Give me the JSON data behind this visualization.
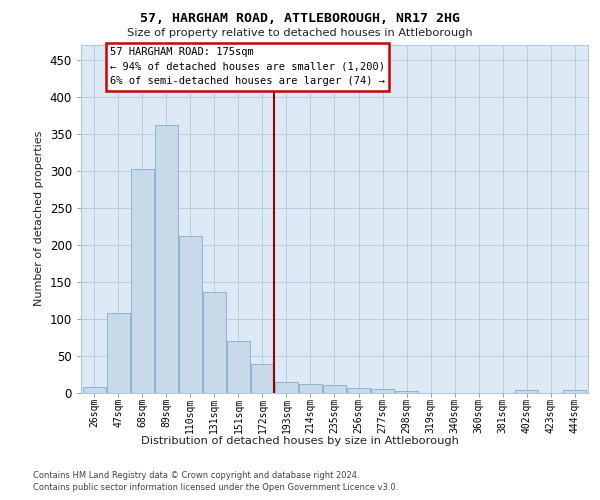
{
  "title": "57, HARGHAM ROAD, ATTLEBOROUGH, NR17 2HG",
  "subtitle": "Size of property relative to detached houses in Attleborough",
  "xlabel": "Distribution of detached houses by size in Attleborough",
  "ylabel": "Number of detached properties",
  "bar_labels": [
    "26sqm",
    "47sqm",
    "68sqm",
    "89sqm",
    "110sqm",
    "131sqm",
    "151sqm",
    "172sqm",
    "193sqm",
    "214sqm",
    "235sqm",
    "256sqm",
    "277sqm",
    "298sqm",
    "319sqm",
    "340sqm",
    "360sqm",
    "381sqm",
    "402sqm",
    "423sqm",
    "444sqm"
  ],
  "bar_values": [
    8,
    107,
    302,
    362,
    212,
    136,
    70,
    38,
    14,
    11,
    10,
    6,
    5,
    2,
    0,
    0,
    0,
    0,
    3,
    0,
    3
  ],
  "bar_color": "#c8daea",
  "bar_edgecolor": "#8ab4cf",
  "vline_color": "#990000",
  "vline_bin_index": 7,
  "annotation_title": "57 HARGHAM ROAD: 175sqm",
  "annotation_line1": "← 94% of detached houses are smaller (1,200)",
  "annotation_line2": "6% of semi-detached houses are larger (74) →",
  "ylim": [
    0,
    470
  ],
  "yticks": [
    0,
    50,
    100,
    150,
    200,
    250,
    300,
    350,
    400,
    450
  ],
  "grid_color": "#b0c8de",
  "plot_bg": "#ddeaf5",
  "footer_line1": "Contains HM Land Registry data © Crown copyright and database right 2024.",
  "footer_line2": "Contains public sector information licensed under the Open Government Licence v3.0."
}
